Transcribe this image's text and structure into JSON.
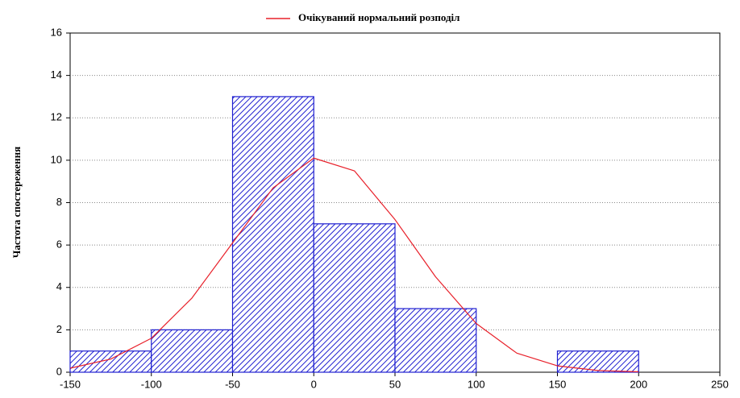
{
  "chart_data": {
    "type": "histogram",
    "ylabel": "Частота спостереження",
    "bins": [
      -150,
      -100,
      -50,
      0,
      50,
      100,
      150,
      200
    ],
    "values": [
      1,
      2,
      13,
      7,
      3,
      0,
      1
    ],
    "color": "#1f1fd0",
    "curve": {
      "name": "Очікуваний нормальний розподіл",
      "color": "#e8202a",
      "x": [
        -150,
        -125,
        -100,
        -75,
        -50,
        -25,
        0,
        25,
        50,
        75,
        100,
        125,
        150,
        175,
        200
      ],
      "values": [
        0.19,
        0.62,
        1.6,
        3.5,
        6.1,
        8.7,
        10.1,
        9.5,
        7.2,
        4.5,
        2.3,
        0.9,
        0.3,
        0.08,
        0.02
      ]
    },
    "xlim": [
      -150,
      250
    ],
    "xticks": [
      -150,
      -100,
      -50,
      0,
      50,
      100,
      150,
      200,
      250
    ],
    "ylim": [
      0,
      16
    ],
    "yticks": [
      0,
      2,
      4,
      6,
      8,
      10,
      12,
      14,
      16
    ],
    "grid": true
  }
}
